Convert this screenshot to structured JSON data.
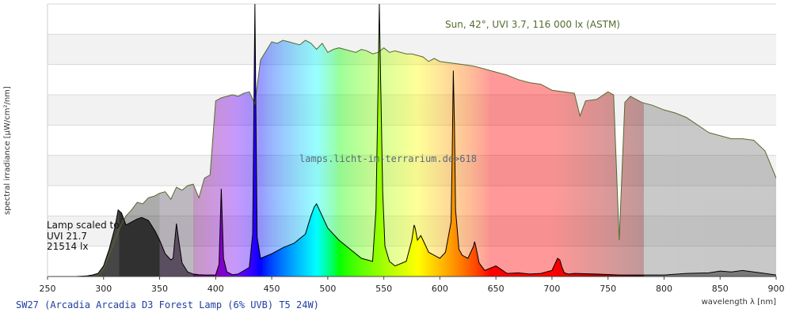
{
  "chart_data": {
    "type": "area",
    "title": "SW27 (Arcadia Arcadia D3 Forest Lamp (6% UVB) T5 24W)",
    "watermark": "lamps.licht-im-terrarium.de>618",
    "xlabel": "wavelength λ [nm]",
    "ylabel": "spectral irradiance [µW/cm²/nm]",
    "xlim": [
      250,
      900
    ],
    "x_ticks": [
      250,
      300,
      350,
      400,
      450,
      500,
      550,
      600,
      650,
      700,
      750,
      800,
      850,
      900
    ],
    "ylim": [
      0,
      9
    ],
    "y_bands": 9,
    "grid": true,
    "series": [
      {
        "name": "Sun, 42°, UVI 3.7, 116 000 lx (ASTM)",
        "color": "#556b2f",
        "x": [
          290,
          295,
          300,
          305,
          310,
          315,
          320,
          325,
          330,
          335,
          340,
          345,
          350,
          355,
          360,
          365,
          370,
          375,
          380,
          385,
          390,
          395,
          400,
          405,
          410,
          415,
          420,
          425,
          430,
          435,
          440,
          445,
          450,
          455,
          460,
          465,
          470,
          475,
          480,
          485,
          490,
          495,
          500,
          505,
          510,
          515,
          520,
          525,
          530,
          535,
          540,
          545,
          550,
          555,
          560,
          565,
          570,
          575,
          580,
          585,
          590,
          595,
          600,
          610,
          620,
          630,
          640,
          650,
          660,
          670,
          680,
          690,
          700,
          710,
          720,
          725,
          730,
          740,
          750,
          755,
          760,
          765,
          770,
          780,
          790,
          800,
          810,
          820,
          830,
          840,
          850,
          860,
          870,
          880,
          890,
          900
        ],
        "y": [
          0,
          0.05,
          0.25,
          0.7,
          1.2,
          1.65,
          2.0,
          2.2,
          2.45,
          2.4,
          2.6,
          2.65,
          2.75,
          2.8,
          2.55,
          2.95,
          2.85,
          3.0,
          3.05,
          2.6,
          3.25,
          3.35,
          5.8,
          5.9,
          5.95,
          6.0,
          5.95,
          6.05,
          6.1,
          5.7,
          7.15,
          7.45,
          7.75,
          7.7,
          7.8,
          7.75,
          7.7,
          7.65,
          7.8,
          7.7,
          7.5,
          7.7,
          7.4,
          7.5,
          7.55,
          7.5,
          7.45,
          7.4,
          7.5,
          7.45,
          7.35,
          7.4,
          7.55,
          7.4,
          7.45,
          7.4,
          7.35,
          7.35,
          7.3,
          7.25,
          7.1,
          7.2,
          7.1,
          7.05,
          7.0,
          6.95,
          6.85,
          6.75,
          6.65,
          6.5,
          6.4,
          6.35,
          6.15,
          6.1,
          6.05,
          5.3,
          5.8,
          5.85,
          6.1,
          6.0,
          1.2,
          5.75,
          5.95,
          5.75,
          5.65,
          5.5,
          5.4,
          5.25,
          5.0,
          4.75,
          4.65,
          4.55,
          4.55,
          4.5,
          4.15,
          3.25
        ]
      },
      {
        "name": "Lamp scaled to UVI 21.7 21514 lx",
        "color": "#000000",
        "x": [
          275,
          285,
          290,
          295,
          300,
          305,
          310,
          313,
          316,
          320,
          330,
          334,
          340,
          346,
          350,
          355,
          360,
          362,
          365,
          367,
          370,
          375,
          380,
          385,
          390,
          395,
          400,
          403,
          405,
          407,
          410,
          415,
          420,
          430,
          433,
          435,
          437,
          440,
          450,
          460,
          470,
          480,
          485,
          488,
          490,
          495,
          500,
          510,
          520,
          530,
          540,
          543,
          545,
          546,
          547,
          549,
          551,
          555,
          560,
          570,
          575,
          577,
          578,
          580,
          583,
          585,
          590,
          595,
          600,
          605,
          610,
          611,
          612,
          613,
          614,
          617,
          620,
          625,
          630,
          631,
          632,
          635,
          640,
          650,
          660,
          670,
          680,
          690,
          700,
          705,
          707,
          709,
          711,
          715,
          720,
          740,
          760,
          780,
          800,
          820,
          840,
          850,
          860,
          870,
          880,
          890,
          900
        ],
        "y": [
          0,
          0.02,
          0.05,
          0.1,
          0.35,
          0.9,
          1.6,
          2.2,
          2.1,
          1.7,
          1.9,
          1.95,
          1.85,
          1.5,
          1.2,
          0.75,
          0.55,
          0.6,
          1.75,
          1.2,
          0.45,
          0.15,
          0.08,
          0.06,
          0.05,
          0.05,
          0.05,
          0.4,
          2.9,
          0.6,
          0.15,
          0.06,
          0.08,
          0.3,
          1.4,
          9.0,
          1.3,
          0.6,
          0.75,
          0.95,
          1.1,
          1.4,
          2.0,
          2.3,
          2.4,
          2.0,
          1.6,
          1.2,
          0.9,
          0.6,
          0.5,
          2.2,
          6.5,
          9.0,
          6.8,
          2.8,
          1.0,
          0.5,
          0.35,
          0.5,
          1.2,
          1.7,
          1.6,
          1.2,
          1.35,
          1.2,
          0.8,
          0.7,
          0.6,
          0.8,
          1.8,
          4.0,
          6.8,
          5.0,
          2.2,
          0.9,
          0.7,
          0.6,
          1.0,
          1.15,
          1.0,
          0.45,
          0.2,
          0.35,
          0.1,
          0.12,
          0.08,
          0.1,
          0.2,
          0.6,
          0.55,
          0.3,
          0.12,
          0.08,
          0.1,
          0.08,
          0.05,
          0.05,
          0.05,
          0.1,
          0.12,
          0.18,
          0.15,
          0.2,
          0.15,
          0.1,
          0.05
        ]
      }
    ],
    "annotations": {
      "sun_label": "Sun, 42°, UVI 3.7, 116 000 lx (ASTM)",
      "lamp_label_lines": [
        "Lamp scaled to",
        "UVI 21.7",
        "21514 lx"
      ]
    }
  }
}
